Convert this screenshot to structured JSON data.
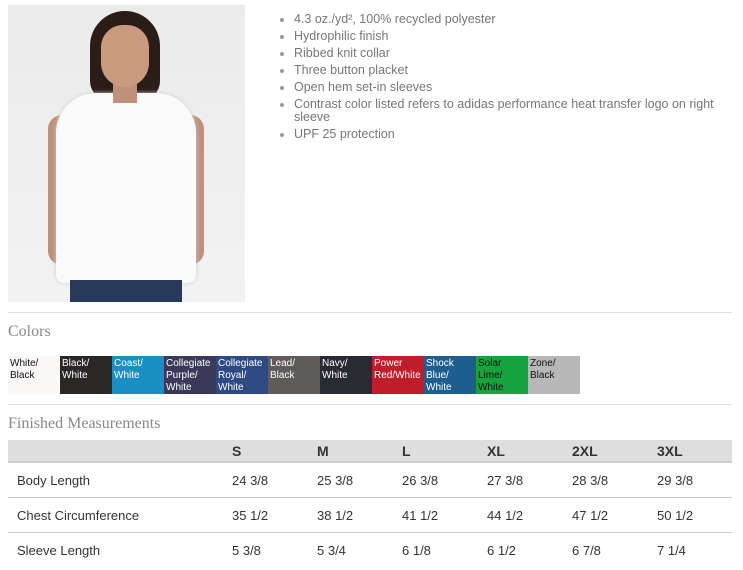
{
  "product": {
    "features": [
      "4.3 oz./yd², 100% recycled polyester",
      "Hydrophilic finish",
      "Ribbed knit collar",
      "Three button placket",
      "Open hem set-in sleeves",
      "Contrast color listed refers to adidas performance heat transfer logo on right sleeve",
      "UPF 25 protection"
    ]
  },
  "colors": {
    "title": "Colors",
    "swatches": [
      {
        "label": "White/ Black",
        "color": "#fbf8f8",
        "text": "#111"
      },
      {
        "label": "Black/ White",
        "color": "#2b2727",
        "text": "#fff"
      },
      {
        "label": "Coast/ White",
        "color": "#1a8fc4",
        "text": "#fff"
      },
      {
        "label": "Collegiate Purple/ White",
        "color": "#3a3a58",
        "text": "#fff"
      },
      {
        "label": "Collegiate Royal/ White",
        "color": "#2e4a82",
        "text": "#fff"
      },
      {
        "label": "Lead/ Black",
        "color": "#5f5b5a",
        "text": "#fff"
      },
      {
        "label": "Navy/ White",
        "color": "#2a2a33",
        "text": "#fff"
      },
      {
        "label": "Power Red/White",
        "color": "#c01c2a",
        "text": "#fff"
      },
      {
        "label": "Shock Blue/ White",
        "color": "#1e5e8e",
        "text": "#fff"
      },
      {
        "label": "Solar Lime/ White",
        "color": "#15a33d",
        "text": "#111"
      },
      {
        "label": "Zone/ Black",
        "color": "#b8b8b8",
        "text": "#111"
      }
    ]
  },
  "measurements": {
    "title": "Finished Measurements",
    "sizes": [
      "S",
      "M",
      "L",
      "XL",
      "2XL",
      "3XL"
    ],
    "rows": [
      {
        "label": "Body Length",
        "values": [
          "24 3/8",
          "25 3/8",
          "26 3/8",
          "27 3/8",
          "28 3/8",
          "29 3/8"
        ]
      },
      {
        "label": "Chest Circumference",
        "values": [
          "35 1/2",
          "38 1/2",
          "41 1/2",
          "44 1/2",
          "47 1/2",
          "50 1/2"
        ]
      },
      {
        "label": "Sleeve Length",
        "values": [
          "5 3/8",
          "5 3/4",
          "6 1/8",
          "6 1/2",
          "6 7/8",
          "7 1/4"
        ]
      }
    ]
  }
}
